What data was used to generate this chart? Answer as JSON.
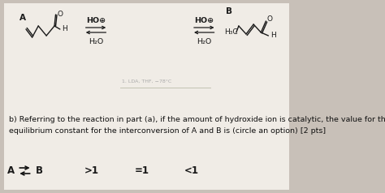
{
  "bg_color": "#c8c0b8",
  "panel_color": "#f0ece6",
  "hoo_label": "HO⊕",
  "h2o_label": "H₂O",
  "body_text_line1": "b) Referring to the reaction in part (a), if the amount of hydroxide ion is catalytic, the value for the",
  "body_text_line2": "equilibrium constant for the interconversion of A and B is (circle an option) [2 pts]",
  "font_size_body": 6.8,
  "font_size_options": 8.5,
  "font_size_mol": 6.5
}
